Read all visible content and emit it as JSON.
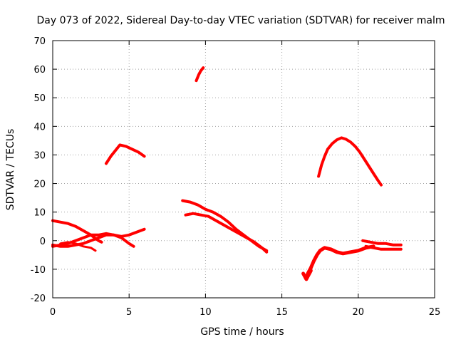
{
  "chart_data": {
    "type": "line",
    "title": "Day 073 of 2022, Sidereal Day-to-day VTEC variation (SDTVAR) for receiver malm",
    "xlabel": "GPS time / hours",
    "ylabel": "SDTVAR / TECUs",
    "xlim": [
      0,
      25
    ],
    "ylim": [
      -20,
      70
    ],
    "xticks": [
      "0",
      "5",
      "10",
      "15",
      "20",
      "25"
    ],
    "yticks": [
      "-20",
      "-10",
      "0",
      "10",
      "20",
      "30",
      "40",
      "50",
      "60",
      "70"
    ],
    "grid": true,
    "color": "#ff0000",
    "series": [
      {
        "name": "arc-early-low",
        "width": 4,
        "x": [
          0.0,
          0.5,
          1.0,
          1.5,
          2.0,
          2.5,
          3.0,
          3.2
        ],
        "y": [
          7,
          6.5,
          6,
          5,
          3.5,
          2,
          0,
          -0.5
        ]
      },
      {
        "name": "arc-early-mid",
        "width": 4,
        "x": [
          0.0,
          0.5,
          1.0,
          1.5,
          2.0,
          2.5,
          3.0,
          3.5,
          4.0,
          4.5,
          5.0,
          5.5,
          6.0
        ],
        "y": [
          -2,
          -1.5,
          -1,
          0,
          1,
          2,
          2,
          2.5,
          2,
          1.5,
          2,
          3,
          4
        ]
      },
      {
        "name": "arc-early-base",
        "width": 4,
        "x": [
          0.0,
          0.5,
          1.0,
          1.5,
          2.0,
          2.5,
          3.0,
          3.5,
          4.0,
          4.5,
          5.0,
          5.3
        ],
        "y": [
          -1.5,
          -2,
          -2,
          -1.5,
          -1,
          0,
          1,
          2,
          2,
          1,
          -1,
          -2
        ]
      },
      {
        "name": "arc-early-dip",
        "width": 3,
        "x": [
          0.5,
          1.0,
          1.5,
          2.0,
          2.5,
          2.8
        ],
        "y": [
          -1,
          -0.5,
          -1,
          -2,
          -2.5,
          -3.5
        ]
      },
      {
        "name": "arc-morning-peak",
        "width": 4,
        "x": [
          3.5,
          3.8,
          4.1,
          4.4,
          4.8,
          5.2,
          5.6,
          6.0
        ],
        "y": [
          27,
          29.5,
          31.5,
          33.5,
          33,
          32,
          31,
          29.5
        ]
      },
      {
        "name": "arc-high-short",
        "width": 4,
        "x": [
          9.4,
          9.55,
          9.7,
          9.85
        ],
        "y": [
          56,
          58,
          59.5,
          60.5
        ]
      },
      {
        "name": "arc-midday-upper",
        "width": 4,
        "x": [
          8.5,
          9.0,
          9.5,
          10.0,
          10.5,
          11.0,
          11.5,
          12.0,
          12.5,
          13.0,
          13.5,
          14.0
        ],
        "y": [
          14,
          13.5,
          12.5,
          11,
          10,
          8.5,
          6.5,
          4,
          2,
          0,
          -2,
          -3.5
        ]
      },
      {
        "name": "arc-midday-lower",
        "width": 4,
        "x": [
          8.7,
          9.2,
          9.7,
          10.2,
          10.7,
          11.2,
          11.7,
          12.2,
          12.7,
          13.2,
          13.7,
          14.0
        ],
        "y": [
          9,
          9.5,
          9,
          8.5,
          7,
          5.5,
          4,
          2.5,
          1,
          -0.5,
          -2.5,
          -4
        ]
      },
      {
        "name": "arc-evening-dome",
        "width": 4,
        "x": [
          17.4,
          17.6,
          17.8,
          18.0,
          18.3,
          18.6,
          18.9,
          19.2,
          19.5,
          19.8,
          20.1,
          20.4,
          20.7,
          21.0,
          21.3,
          21.5
        ],
        "y": [
          22.5,
          26.5,
          29.5,
          32,
          34,
          35.3,
          36,
          35.5,
          34.5,
          33,
          31,
          28.5,
          26,
          23.5,
          21,
          19.5
        ]
      },
      {
        "name": "arc-night-hook",
        "width": 5,
        "x": [
          16.6,
          16.7,
          16.9,
          17.1,
          17.3,
          17.5,
          17.8,
          18.2,
          18.6,
          19.0,
          19.5,
          20.0,
          20.5,
          21.0
        ],
        "y": [
          -13,
          -11.5,
          -9.5,
          -7,
          -5,
          -3.5,
          -2.5,
          -3,
          -4,
          -4.5,
          -4,
          -3.5,
          -2.5,
          -2
        ]
      },
      {
        "name": "arc-night-tail",
        "width": 5,
        "x": [
          16.4,
          16.5,
          16.6,
          16.75,
          16.9
        ],
        "y": [
          -11.5,
          -12.5,
          -13.5,
          -12,
          -10.5
        ]
      },
      {
        "name": "arc-late-upper",
        "width": 4,
        "x": [
          20.3,
          20.8,
          21.3,
          21.8,
          22.3,
          22.8
        ],
        "y": [
          0,
          -0.5,
          -1,
          -1,
          -1.5,
          -1.5
        ]
      },
      {
        "name": "arc-late-lower",
        "width": 4,
        "x": [
          20.5,
          21.0,
          21.5,
          22.0,
          22.5,
          22.8
        ],
        "y": [
          -2,
          -2.5,
          -3,
          -3,
          -3,
          -3
        ]
      }
    ]
  }
}
